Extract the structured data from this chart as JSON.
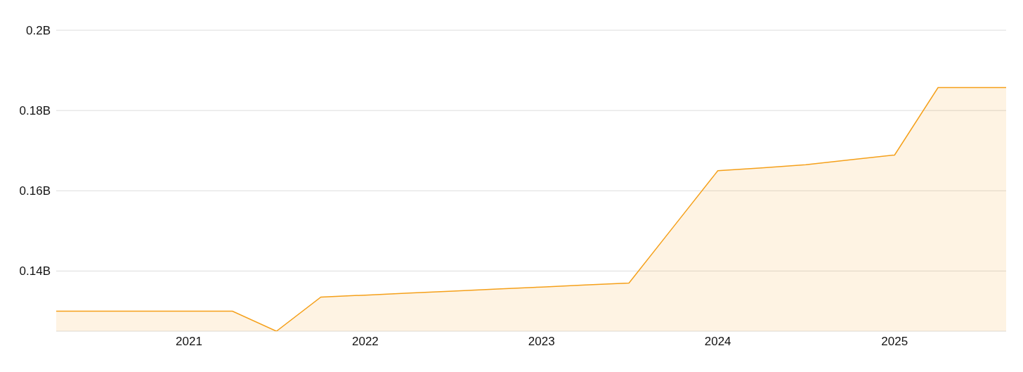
{
  "chart_data": {
    "type": "area",
    "x": [
      "2020-04-01",
      "2020-07-01",
      "2020-10-01",
      "2021-01-01",
      "2021-04-01",
      "2021-07-01",
      "2021-10-01",
      "2022-01-01",
      "2022-04-01",
      "2022-07-01",
      "2022-10-01",
      "2023-01-01",
      "2023-04-01",
      "2023-07-01",
      "2023-10-01",
      "2024-01-01",
      "2024-04-01",
      "2024-07-01",
      "2024-10-01",
      "2025-01-01",
      "2025-04-01",
      "2025-08-20"
    ],
    "series": [
      {
        "color": "#f5a01a",
        "values": [
          0.13,
          0.13,
          0.13,
          0.13,
          0.13,
          0.125,
          0.1335,
          0.134,
          0.1345,
          0.135,
          0.1355,
          0.136,
          0.1365,
          0.137,
          0.151,
          0.165,
          0.1657,
          0.1665,
          0.1677,
          0.1689,
          0.1857,
          0.1857
        ]
      }
    ],
    "xlim": [
      "2020-04-01",
      "2025-08-20"
    ],
    "xticks": [
      "2021",
      "2022",
      "2023",
      "2024",
      "2025"
    ],
    "ylim": [
      0.125,
      0.2
    ],
    "yticks": [
      {
        "value": 0.14,
        "label": "0.14B"
      },
      {
        "value": 0.16,
        "label": "0.16B"
      },
      {
        "value": 0.18,
        "label": "0.18B"
      },
      {
        "value": 0.2,
        "label": "0.2B"
      }
    ],
    "grid": "y",
    "legend": false
  }
}
